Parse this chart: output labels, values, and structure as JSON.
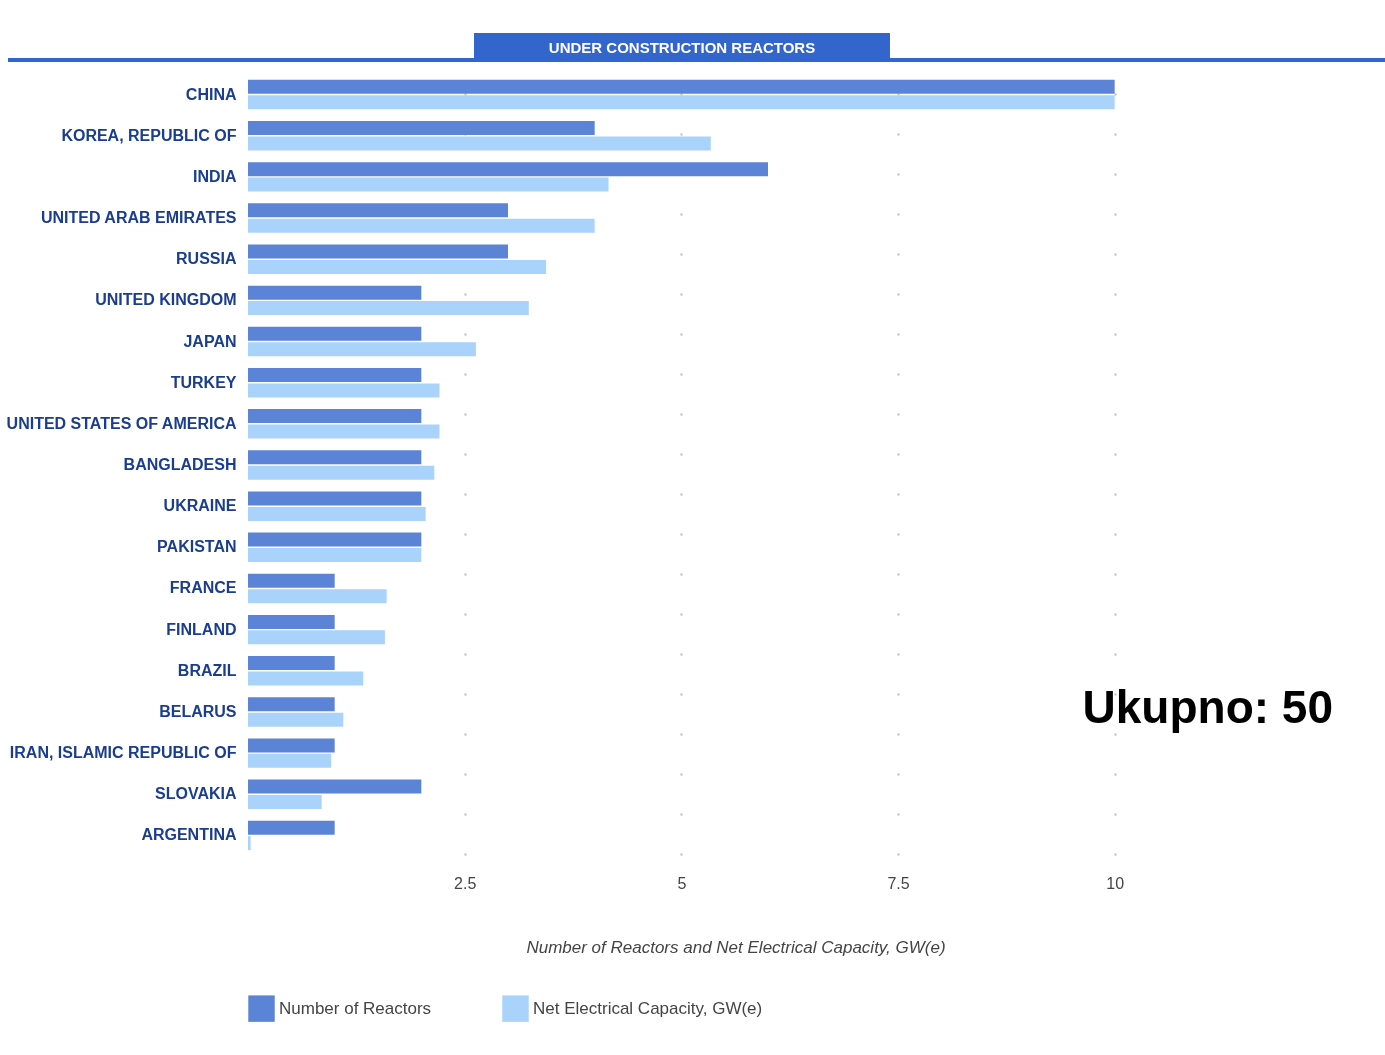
{
  "chart_data": {
    "type": "bar",
    "orientation": "horizontal",
    "title": "UNDER CONSTRUCTION REACTORS",
    "xlabel": "Number of Reactors and Net Electrical Capacity, GW(e)",
    "categories": [
      "CHINA",
      "KOREA, REPUBLIC OF",
      "INDIA",
      "UNITED ARAB EMIRATES",
      "RUSSIA",
      "UNITED KINGDOM",
      "JAPAN",
      "TURKEY",
      "UNITED STATES OF AMERICA",
      "BANGLADESH",
      "UKRAINE",
      "PAKISTAN",
      "FRANCE",
      "FINLAND",
      "BRAZIL",
      "BELARUS",
      "IRAN, ISLAMIC REPUBLIC OF",
      "SLOVAKIA",
      "ARGENTINA"
    ],
    "series": [
      {
        "name": "Number of Reactors",
        "color": "#5b84d6",
        "values": [
          10,
          4,
          6,
          3,
          3,
          2,
          2,
          2,
          2,
          2,
          2,
          2,
          1,
          1,
          1,
          1,
          1,
          2,
          1
        ]
      },
      {
        "name": "Net Electrical Capacity, GW(e)",
        "color": "#aad3fb",
        "values": [
          10,
          5.34,
          4.16,
          4.0,
          3.44,
          3.24,
          2.63,
          2.21,
          2.21,
          2.15,
          2.05,
          2.0,
          1.6,
          1.58,
          1.33,
          1.1,
          0.96,
          0.85,
          0.03
        ]
      }
    ],
    "xlim": [
      0,
      11.25
    ],
    "xticks": [
      2.5,
      5,
      7.5,
      10
    ],
    "grid": "x",
    "legend": "bottom",
    "annotations": [
      "Ukupno: 50"
    ]
  }
}
